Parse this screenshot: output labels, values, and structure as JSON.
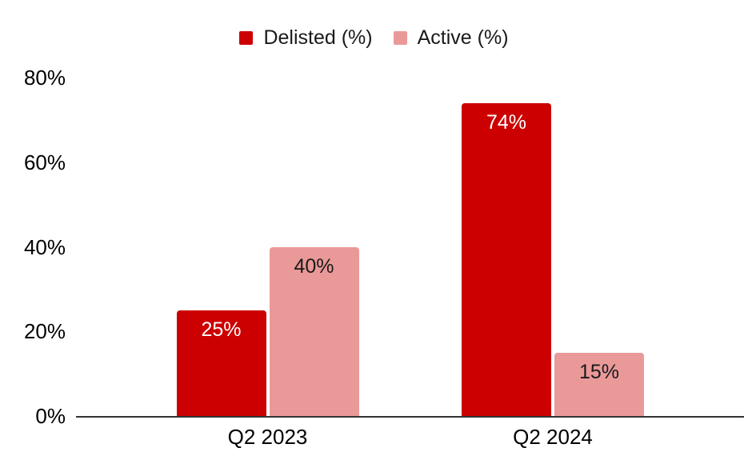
{
  "chart_data": {
    "type": "bar",
    "title": "",
    "xlabel": "",
    "ylabel": "",
    "categories": [
      "Q2 2023",
      "Q2 2024"
    ],
    "series": [
      {
        "name": "Delisted (%)",
        "values": [
          25,
          74
        ],
        "labels": [
          "25%",
          "74%"
        ],
        "color": "#CC0000",
        "label_color": "#FFFFFF"
      },
      {
        "name": "Active (%)",
        "values": [
          40,
          15
        ],
        "labels": [
          "40%",
          "15%"
        ],
        "color": "#EA9999",
        "label_color": "#1A1A1A"
      }
    ],
    "ylim": [
      0,
      80
    ],
    "yticks": [
      {
        "value": 0,
        "label": "0%"
      },
      {
        "value": 20,
        "label": "20%"
      },
      {
        "value": 40,
        "label": "40%"
      },
      {
        "value": 60,
        "label": "60%"
      },
      {
        "value": 80,
        "label": "80%"
      }
    ],
    "grid": false,
    "legend_position": "top",
    "axis_line_color": "#333333",
    "background_color": "#FFFFFF"
  }
}
